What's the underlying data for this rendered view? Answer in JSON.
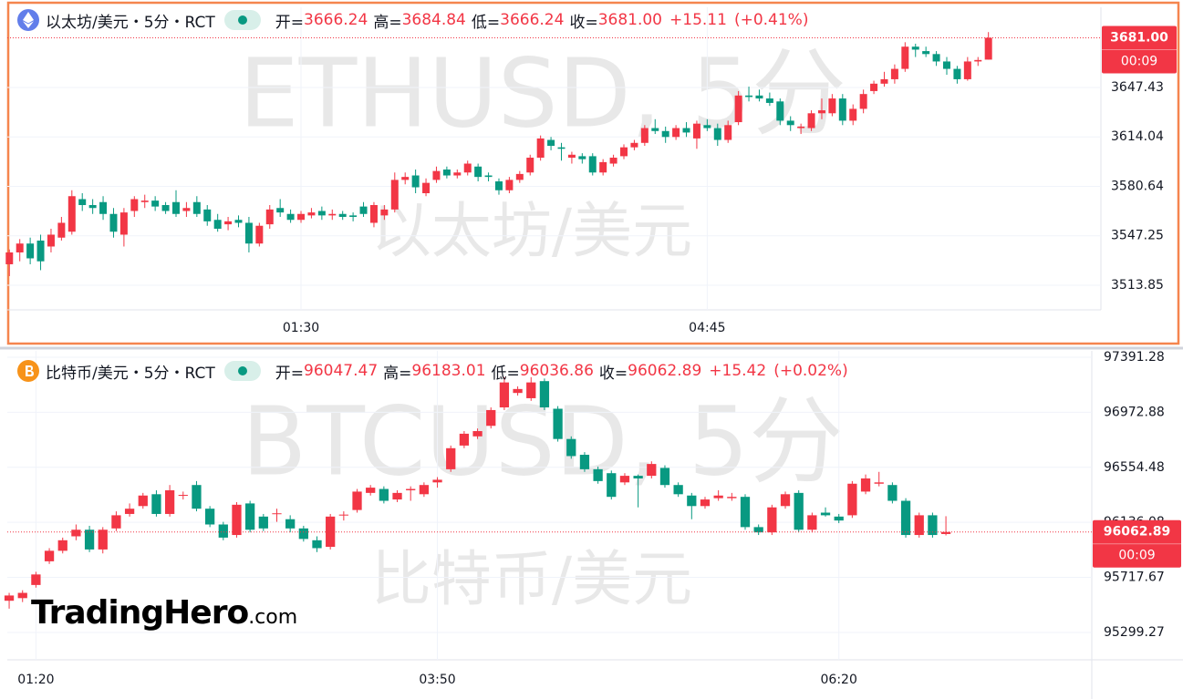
{
  "chart_data": [
    {
      "type": "candlestick",
      "symbol": "以太坊/美元・5分・RCT",
      "legend": [
        {
          "label": "开=",
          "value": "3666.24"
        },
        {
          "label": "高=",
          "value": "3684.84"
        },
        {
          "label": "低=",
          "value": "3666.24"
        },
        {
          "label": "收=",
          "value": "3681.00"
        }
      ],
      "change": "+15.11",
      "change_pct": "(+0.41%)",
      "watermark": "ETHUSD, 5分",
      "watermark_sub": "以太坊/美元",
      "up_color": "#f23645",
      "down_color": "#089981",
      "last_price": {
        "value": 3681,
        "label": "3681.00"
      },
      "countdown": "00:09",
      "ylim": [
        3497.2,
        3701.6
      ],
      "yticks": [
        3513.85,
        3547.25,
        3580.64,
        3614.04,
        3647.43
      ],
      "xlim": [
        -0.2,
        104.8
      ],
      "xticks": [
        {
          "value": 28,
          "label": "01:30"
        },
        {
          "value": 67,
          "label": "04:45"
        }
      ],
      "grid": true,
      "ohlc": [
        [
          3528,
          3538,
          3520,
          3536
        ],
        [
          3536,
          3545,
          3530,
          3542
        ],
        [
          3542,
          3546,
          3528,
          3532
        ],
        [
          3544,
          3548,
          3524,
          3530
        ],
        [
          3540,
          3552,
          3536,
          3548
        ],
        [
          3546,
          3560,
          3544,
          3556
        ],
        [
          3550,
          3578,
          3548,
          3574
        ],
        [
          3572,
          3576,
          3564,
          3568
        ],
        [
          3568,
          3572,
          3562,
          3566
        ],
        [
          3570,
          3574,
          3558,
          3562
        ],
        [
          3562,
          3566,
          3546,
          3550
        ],
        [
          3548,
          3566,
          3540,
          3563
        ],
        [
          3564,
          3574,
          3560,
          3572
        ],
        [
          3570,
          3575,
          3566,
          3571
        ],
        [
          3571,
          3574,
          3564,
          3567
        ],
        [
          3568,
          3570,
          3562,
          3564
        ],
        [
          3570,
          3578,
          3560,
          3562
        ],
        [
          3564,
          3570,
          3560,
          3566
        ],
        [
          3570,
          3574,
          3560,
          3562
        ],
        [
          3565,
          3568,
          3554,
          3557
        ],
        [
          3558,
          3562,
          3550,
          3552
        ],
        [
          3555,
          3560,
          3551,
          3557
        ],
        [
          3558,
          3561,
          3553,
          3556
        ],
        [
          3556,
          3560,
          3536,
          3542
        ],
        [
          3542,
          3556,
          3540,
          3554
        ],
        [
          3555,
          3568,
          3552,
          3565
        ],
        [
          3566,
          3572,
          3560,
          3563
        ],
        [
          3562,
          3565,
          3556,
          3558
        ],
        [
          3558,
          3564,
          3556,
          3562
        ],
        [
          3561,
          3566,
          3559,
          3563
        ],
        [
          3564,
          3567,
          3558,
          3561
        ],
        [
          3561,
          3565,
          3558,
          3562
        ],
        [
          3562,
          3564,
          3558,
          3560
        ],
        [
          3561,
          3563,
          3557,
          3560
        ],
        [
          3567,
          3570,
          3560,
          3562
        ],
        [
          3556,
          3570,
          3553,
          3568
        ],
        [
          3561,
          3568,
          3558,
          3565
        ],
        [
          3565,
          3590,
          3563,
          3585
        ],
        [
          3585,
          3590,
          3582,
          3587
        ],
        [
          3588,
          3592,
          3576,
          3580
        ],
        [
          3576,
          3586,
          3574,
          3583
        ],
        [
          3585,
          3594,
          3583,
          3591
        ],
        [
          3592,
          3594,
          3586,
          3588
        ],
        [
          3588,
          3592,
          3586,
          3590
        ],
        [
          3590,
          3598,
          3588,
          3596
        ],
        [
          3594,
          3596,
          3584,
          3587
        ],
        [
          3588,
          3590,
          3584,
          3587
        ],
        [
          3584,
          3586,
          3575,
          3578
        ],
        [
          3578,
          3587,
          3576,
          3585
        ],
        [
          3585,
          3591,
          3583,
          3589
        ],
        [
          3590,
          3602,
          3588,
          3600
        ],
        [
          3600,
          3615,
          3598,
          3613
        ],
        [
          3612,
          3614,
          3605,
          3608
        ],
        [
          3607,
          3610,
          3598,
          3606
        ],
        [
          3600,
          3604,
          3596,
          3602
        ],
        [
          3601,
          3603,
          3596,
          3599
        ],
        [
          3601,
          3603,
          3588,
          3590
        ],
        [
          3590,
          3599,
          3588,
          3597
        ],
        [
          3596,
          3602,
          3594,
          3600
        ],
        [
          3601,
          3609,
          3599,
          3607
        ],
        [
          3607,
          3612,
          3605,
          3610
        ],
        [
          3610,
          3622,
          3608,
          3620
        ],
        [
          3620,
          3626,
          3616,
          3618
        ],
        [
          3618,
          3621,
          3610,
          3614
        ],
        [
          3614,
          3622,
          3612,
          3620
        ],
        [
          3620,
          3624,
          3614,
          3617
        ],
        [
          3613,
          3625,
          3606,
          3623
        ],
        [
          3622,
          3626,
          3618,
          3620
        ],
        [
          3620,
          3623,
          3608,
          3612
        ],
        [
          3612,
          3625,
          3610,
          3622
        ],
        [
          3624,
          3645,
          3622,
          3642
        ],
        [
          3642,
          3648,
          3638,
          3641
        ],
        [
          3642,
          3646,
          3638,
          3640
        ],
        [
          3640,
          3644,
          3635,
          3637
        ],
        [
          3638,
          3640,
          3622,
          3625
        ],
        [
          3625,
          3628,
          3618,
          3622
        ],
        [
          3620,
          3623,
          3616,
          3621
        ],
        [
          3620,
          3632,
          3618,
          3630
        ],
        [
          3630,
          3640,
          3626,
          3632
        ],
        [
          3630,
          3643,
          3628,
          3640
        ],
        [
          3640,
          3643,
          3622,
          3625
        ],
        [
          3625,
          3636,
          3622,
          3633
        ],
        [
          3633,
          3646,
          3630,
          3643
        ],
        [
          3645,
          3652,
          3643,
          3650
        ],
        [
          3650,
          3658,
          3648,
          3653
        ],
        [
          3653,
          3663,
          3650,
          3660
        ],
        [
          3660,
          3678,
          3658,
          3675
        ],
        [
          3675,
          3677,
          3668,
          3673
        ],
        [
          3672,
          3675,
          3668,
          3670
        ],
        [
          3670,
          3672,
          3662,
          3665
        ],
        [
          3665,
          3668,
          3656,
          3660
        ],
        [
          3660,
          3662,
          3650,
          3653
        ],
        [
          3653,
          3668,
          3652,
          3665
        ],
        [
          3665,
          3668,
          3662,
          3666
        ],
        [
          3666.24,
          3684.84,
          3666.24,
          3681
        ]
      ]
    },
    {
      "type": "candlestick",
      "symbol": "比特币/美元・5分・RCT",
      "legend": [
        {
          "label": "开=",
          "value": "96047.47"
        },
        {
          "label": "高=",
          "value": "96183.01"
        },
        {
          "label": "低=",
          "value": "96036.86"
        },
        {
          "label": "收=",
          "value": "96062.89"
        }
      ],
      "change": "+15.42",
      "change_pct": "(+0.02%)",
      "watermark": "BTCUSD, 5分",
      "watermark_sub": "比特币/美元",
      "up_color": "#f23645",
      "down_color": "#089981",
      "last_price": 96062.89,
      "countdown": "00:09",
      "ylim": [
        95091,
        97440
      ],
      "yticks": [
        95299.27,
        95717.67,
        96136.08,
        96554.48,
        96972.88,
        97391.28
      ],
      "xlim": [
        -0.14,
        80.9
      ],
      "xticks": [
        {
          "value": 2,
          "label": "01:20"
        },
        {
          "value": 32,
          "label": "03:50"
        },
        {
          "value": 62,
          "label": "06:20"
        }
      ],
      "grid": true,
      "ohlc": [
        [
          95540,
          95600,
          95480,
          95580
        ],
        [
          95560,
          95620,
          95530,
          95600
        ],
        [
          95660,
          95760,
          95640,
          95740
        ],
        [
          95840,
          95940,
          95820,
          95920
        ],
        [
          95920,
          96020,
          95900,
          96000
        ],
        [
          96030,
          96120,
          96000,
          96080
        ],
        [
          96080,
          96110,
          95910,
          95930
        ],
        [
          95930,
          96100,
          95900,
          96080
        ],
        [
          96090,
          96220,
          96070,
          96190
        ],
        [
          96200,
          96280,
          96180,
          96240
        ],
        [
          96260,
          96360,
          96240,
          96340
        ],
        [
          96350,
          96380,
          96180,
          96200
        ],
        [
          96200,
          96420,
          96180,
          96380
        ],
        [
          96340,
          96370,
          96310,
          96345
        ],
        [
          96420,
          96450,
          96220,
          96240
        ],
        [
          96240,
          96260,
          96100,
          96120
        ],
        [
          96120,
          96140,
          96000,
          96020
        ],
        [
          96040,
          96290,
          96020,
          96270
        ],
        [
          96280,
          96300,
          96060,
          96080
        ],
        [
          96180,
          96200,
          96070,
          96090
        ],
        [
          96200,
          96240,
          96140,
          96205
        ],
        [
          96160,
          96190,
          96060,
          96090
        ],
        [
          96090,
          96110,
          95990,
          96010
        ],
        [
          96000,
          96030,
          95910,
          95940
        ],
        [
          95950,
          96200,
          95930,
          96180
        ],
        [
          96190,
          96220,
          96150,
          96195
        ],
        [
          96230,
          96390,
          96210,
          96370
        ],
        [
          96360,
          96420,
          96340,
          96400
        ],
        [
          96390,
          96410,
          96280,
          96300
        ],
        [
          96310,
          96380,
          96290,
          96360
        ],
        [
          96380,
          96410,
          96300,
          96390
        ],
        [
          96350,
          96440,
          96330,
          96420
        ],
        [
          96440,
          96480,
          96400,
          96460
        ],
        [
          96540,
          96720,
          96520,
          96700
        ],
        [
          96720,
          96830,
          96700,
          96810
        ],
        [
          96790,
          96850,
          96770,
          96830
        ],
        [
          96870,
          97010,
          96850,
          96990
        ],
        [
          97010,
          97240,
          96990,
          97200
        ],
        [
          97120,
          97170,
          97100,
          97150
        ],
        [
          97080,
          97240,
          97060,
          97200
        ],
        [
          97210,
          97230,
          96990,
          97010
        ],
        [
          97000,
          97020,
          96750,
          96770
        ],
        [
          96770,
          96790,
          96620,
          96640
        ],
        [
          96650,
          96670,
          96520,
          96540
        ],
        [
          96540,
          96560,
          96430,
          96450
        ],
        [
          96510,
          96530,
          96310,
          96330
        ],
        [
          96440,
          96510,
          96420,
          96490
        ],
        [
          96490,
          96500,
          96250,
          96470
        ],
        [
          96490,
          96600,
          96470,
          96580
        ],
        [
          96550,
          96570,
          96400,
          96420
        ],
        [
          96420,
          96440,
          96330,
          96350
        ],
        [
          96340,
          96360,
          96160,
          96260
        ],
        [
          96260,
          96330,
          96240,
          96310
        ],
        [
          96320,
          96380,
          96300,
          96340
        ],
        [
          96320,
          96360,
          96300,
          96330
        ],
        [
          96330,
          96350,
          96080,
          96100
        ],
        [
          96100,
          96120,
          96040,
          96060
        ],
        [
          96060,
          96270,
          96040,
          96250
        ],
        [
          96260,
          96370,
          96240,
          96350
        ],
        [
          96360,
          96380,
          96060,
          96080
        ],
        [
          96080,
          96210,
          96060,
          96190
        ],
        [
          96210,
          96250,
          96180,
          96190
        ],
        [
          96180,
          96200,
          96130,
          96150
        ],
        [
          96190,
          96450,
          96170,
          96430
        ],
        [
          96370,
          96500,
          96350,
          96470
        ],
        [
          96430,
          96520,
          96410,
          96440
        ],
        [
          96420,
          96440,
          96280,
          96300
        ],
        [
          96300,
          96320,
          96020,
          96040
        ],
        [
          96040,
          96210,
          96020,
          96190
        ],
        [
          96190,
          96210,
          96020,
          96040
        ],
        [
          96047.47,
          96183.01,
          96036.86,
          96062.89
        ]
      ]
    }
  ],
  "logo": {
    "name": "TradingHero",
    "suffix": ".com"
  }
}
